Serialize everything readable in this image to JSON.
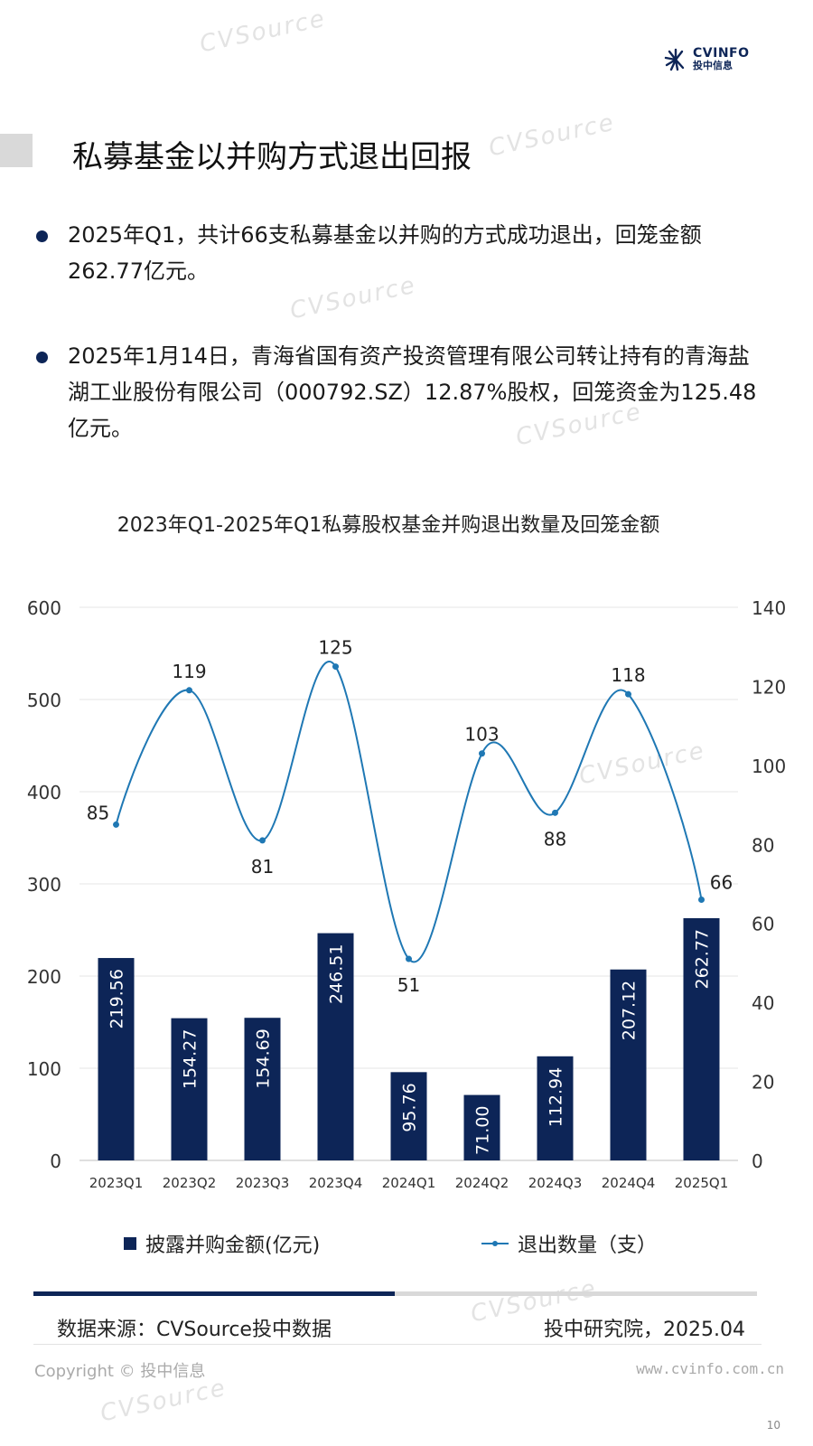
{
  "logo": {
    "name": "CVINFO",
    "sub": "投中信息"
  },
  "watermark": "CVSource 投中数据",
  "page_title": "私募基金以并购方式退出回报",
  "bullets": [
    "2025年Q1，共计66支私募基金以并购的方式成功退出，回笼金额262.77亿元。",
    "2025年1月14日，青海省国有资产投资管理有限公司转让持有的青海盐湖工业股份有限公司（000792.SZ）12.87%股权，回笼资金为125.48亿元。"
  ],
  "chart_data": {
    "type": "bar+line",
    "title": "2023年Q1-2025年Q1私募股权基金并购退出数量及回笼金额",
    "categories": [
      "2023Q1",
      "2023Q2",
      "2023Q3",
      "2023Q4",
      "2024Q1",
      "2024Q2",
      "2024Q3",
      "2024Q4",
      "2025Q1"
    ],
    "series": [
      {
        "name": "披露并购金额(亿元)",
        "type": "bar",
        "axis": "left",
        "color": "#0d2557",
        "values": [
          219.56,
          154.27,
          154.69,
          246.51,
          95.76,
          71.0,
          112.94,
          207.12,
          262.77
        ],
        "labels": [
          "219.56",
          "154.27",
          "154.69",
          "246.51",
          "95.76",
          "71.00",
          "112.94",
          "207.12",
          "262.77"
        ]
      },
      {
        "name": "退出数量（支）",
        "type": "line",
        "axis": "right",
        "color": "#1f78b4",
        "values": [
          85,
          119,
          81,
          125,
          51,
          103,
          88,
          118,
          66
        ]
      }
    ],
    "y_left": {
      "min": 0,
      "max": 600,
      "ticks": [
        0,
        100,
        200,
        300,
        400,
        500,
        600
      ]
    },
    "y_right": {
      "min": 0,
      "max": 140,
      "ticks": [
        0,
        20,
        40,
        60,
        80,
        100,
        120,
        140
      ]
    },
    "grid": true,
    "legend": "bottom"
  },
  "footer": {
    "source": "数据来源：CVSource投中数据",
    "org": "投中研究院，2025.04",
    "copyright": "Copyright © 投中信息",
    "site": "www.cvinfo.com.cn",
    "page": "10"
  }
}
